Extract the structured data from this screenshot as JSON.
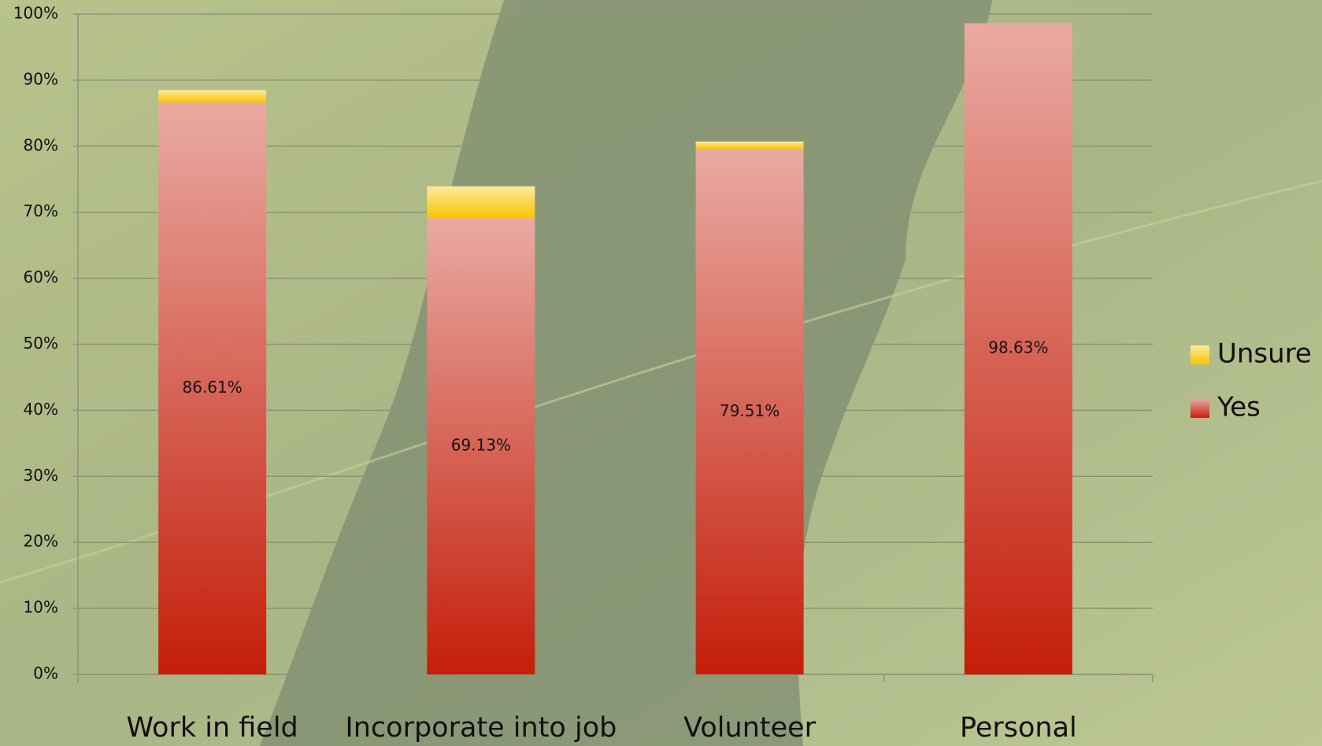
{
  "chart_data": {
    "type": "stacked_bar",
    "categories": [
      "Work in field",
      "Incorporate into job",
      "Volunteer",
      "Personal"
    ],
    "series": [
      {
        "name": "Yes",
        "color": "#c41e0a",
        "values": [
          86.61,
          69.13,
          79.51,
          98.63
        ],
        "value_labels": [
          "86.61%",
          "69.13%",
          "79.51%",
          "98.63%"
        ]
      },
      {
        "name": "Unsure",
        "color": "#f9c400",
        "values": [
          1.9,
          4.8,
          1.2,
          0
        ]
      }
    ],
    "ylim": [
      0,
      100
    ],
    "yticks": [
      {
        "value": 0,
        "label": "0%"
      },
      {
        "value": 10,
        "label": "10%"
      },
      {
        "value": 20,
        "label": "20%"
      },
      {
        "value": 30,
        "label": "30%"
      },
      {
        "value": 40,
        "label": "40%"
      },
      {
        "value": 50,
        "label": "50%"
      },
      {
        "value": 60,
        "label": "60%"
      },
      {
        "value": 70,
        "label": "70%"
      },
      {
        "value": 80,
        "label": "80%"
      },
      {
        "value": 90,
        "label": "90%"
      },
      {
        "value": 100,
        "label": "100%"
      }
    ],
    "grid": true,
    "legend": "right"
  }
}
